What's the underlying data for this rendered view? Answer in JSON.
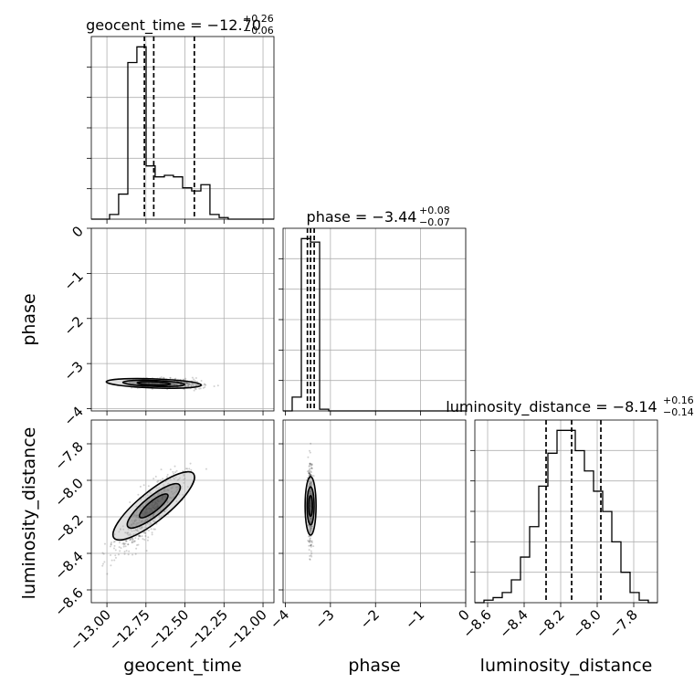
{
  "chart_data": {
    "type": "corner",
    "parameters": [
      "geocent_time",
      "phase",
      "luminosity_distance"
    ],
    "axis_labels": {
      "geocent_time": "geocent_time",
      "phase": "phase",
      "luminosity_distance": "luminosity_distance"
    },
    "titles": {
      "geocent_time": {
        "name": "geocent_time",
        "median": "−12.70",
        "plus": "+0.26",
        "minus": "−0.06"
      },
      "phase": {
        "name": "phase",
        "median": "−3.44",
        "plus": "+0.08",
        "minus": "−0.07"
      },
      "luminosity_distance": {
        "name": "luminosity_distance",
        "median": "−8.14",
        "plus": "+0.16",
        "minus": "−0.14"
      }
    },
    "ranges": {
      "geocent_time": [
        -13.1,
        -11.93
      ],
      "phase": [
        -4.05,
        0.0
      ],
      "luminosity_distance": [
        -8.67,
        -7.67
      ]
    },
    "ticks": {
      "geocent_time": [
        {
          "v": -13.0,
          "label": "−13.00"
        },
        {
          "v": -12.75,
          "label": "−12.75"
        },
        {
          "v": -12.5,
          "label": "−12.50"
        },
        {
          "v": -12.25,
          "label": "−12.25"
        },
        {
          "v": -12.0,
          "label": "−12.00"
        }
      ],
      "phase": [
        {
          "v": -4,
          "label": "−4"
        },
        {
          "v": -3,
          "label": "−3"
        },
        {
          "v": -2,
          "label": "−2"
        },
        {
          "v": -1,
          "label": "−1"
        },
        {
          "v": 0,
          "label": "0"
        }
      ],
      "luminosity_distance": [
        {
          "v": -8.6,
          "label": "−8.6"
        },
        {
          "v": -8.4,
          "label": "−8.4"
        },
        {
          "v": -8.2,
          "label": "−8.2"
        },
        {
          "v": -8.0,
          "label": "−8.0"
        },
        {
          "v": -7.8,
          "label": "−7.8"
        }
      ]
    },
    "histograms": {
      "geocent_time": {
        "edges": [
          -13.1,
          -13.042,
          -12.983,
          -12.925,
          -12.866,
          -12.808,
          -12.749,
          -12.691,
          -12.632,
          -12.574,
          -12.515,
          -12.457,
          -12.398,
          -12.34,
          -12.281,
          -12.223,
          -12.164,
          -12.106,
          -12.047,
          -11.989,
          -11.93
        ],
        "counts": [
          0,
          0,
          3,
          16,
          100,
          110,
          34,
          27,
          28,
          27,
          20,
          18,
          22,
          3,
          1,
          0,
          0,
          0,
          0,
          0
        ],
        "quantiles": [
          -12.76,
          -12.7,
          -12.44
        ]
      },
      "phase": {
        "edges": [
          -4.05,
          -3.848,
          -3.645,
          -3.442,
          -3.24,
          -3.037,
          -2.835,
          -2.633,
          -2.43,
          -2.227,
          -2.025,
          -1.823,
          -1.62,
          -1.417,
          -1.215,
          -1.012,
          -0.81,
          -0.607,
          -0.405,
          -0.202,
          0.0
        ],
        "counts": [
          0,
          8,
          100,
          98,
          1,
          0,
          0,
          0,
          0,
          0,
          0,
          0,
          0,
          0,
          0,
          0,
          0,
          0,
          0,
          0
        ],
        "quantiles": [
          -3.51,
          -3.44,
          -3.36
        ]
      },
      "luminosity_distance": {
        "edges": [
          -8.67,
          -8.62,
          -8.57,
          -8.52,
          -8.47,
          -8.42,
          -8.37,
          -8.32,
          -8.27,
          -8.22,
          -8.17,
          -8.12,
          -8.07,
          -8.02,
          -7.97,
          -7.92,
          -7.87,
          -7.82,
          -7.77,
          -7.72,
          -7.67
        ],
        "counts": [
          0,
          1,
          2,
          4,
          9,
          18,
          30,
          46,
          59,
          68,
          68,
          60,
          52,
          44,
          36,
          24,
          12,
          4,
          1,
          0
        ],
        "quantiles": [
          -8.28,
          -8.14,
          -7.98
        ]
      }
    },
    "posterior_center": {
      "geocent_time": -12.7,
      "phase": -3.44,
      "luminosity_distance": -8.14
    }
  }
}
